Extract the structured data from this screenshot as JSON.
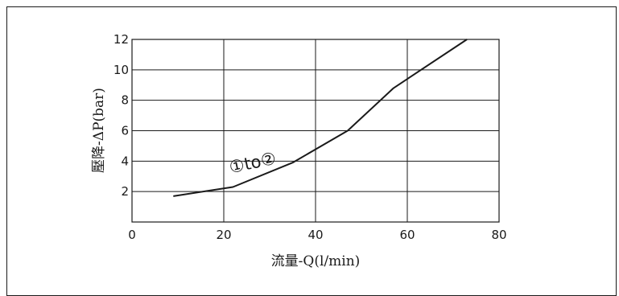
{
  "chart_data": {
    "type": "line",
    "xlabel": "流量-Q(l/min)",
    "ylabel": "壓降-ΔP(bar)",
    "xlim": [
      0,
      80
    ],
    "ylim": [
      0,
      12
    ],
    "x_ticks": [
      "0",
      "20",
      "40",
      "60",
      "80"
    ],
    "y_ticks": [
      "2",
      "4",
      "6",
      "8",
      "10",
      "12"
    ],
    "grid": true,
    "series": [
      {
        "x": [
          9,
          22,
          35,
          47,
          57,
          73
        ],
        "y": [
          1.7,
          2.3,
          3.9,
          6.0,
          8.8,
          12.0
        ]
      }
    ],
    "annotations": [
      {
        "text": "①to②",
        "x": 21.5,
        "y": 3.2
      }
    ]
  }
}
